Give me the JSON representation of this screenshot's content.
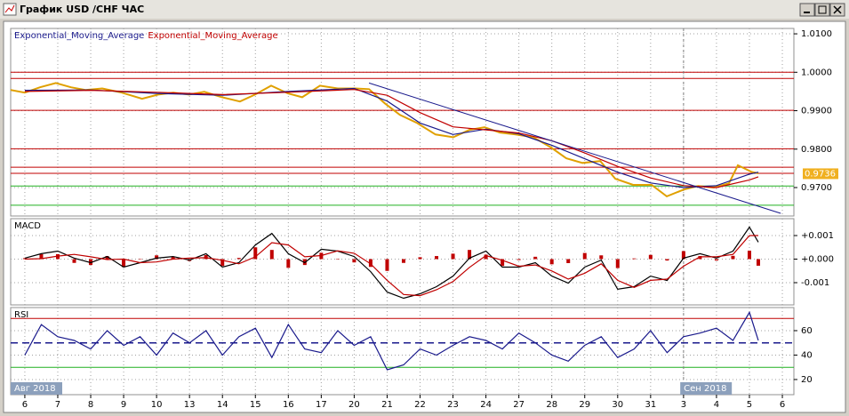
{
  "window_title": "График USD /CHF ЧАС",
  "chart_data": [
    {
      "type": "line",
      "series": [
        {
          "color": "#e0a000",
          "x": [
            -0.43,
            0,
            0.46,
            0.94,
            1.4,
            1.84,
            2.35,
            2.94,
            3.56,
            4.05,
            4.51,
            4.99,
            5.45,
            5.99,
            6.53,
            6.99,
            7.48,
            7.99,
            8.42,
            8.96,
            9.5,
            10.04,
            10.45,
            10.93,
            11.39,
            11.91,
            12.47,
            13.01,
            13.5,
            13.96,
            14.42,
            14.9,
            15.44,
            15.98,
            16.44,
            16.93,
            17.47,
            17.93,
            18.47,
            19.03,
            19.49,
            20.01,
            20.44,
            20.92,
            21.38,
            21.65,
            22.06,
            22.27
          ],
          "values": [
            0.9954,
            0.9947,
            0.9961,
            0.9972,
            0.9961,
            0.9954,
            0.9958,
            0.9947,
            0.9931,
            0.9942,
            0.9947,
            0.9942,
            0.9949,
            0.9935,
            0.9924,
            0.9942,
            0.9965,
            0.9945,
            0.9935,
            0.9965,
            0.9958,
            0.9958,
            0.9956,
            0.9919,
            0.9889,
            0.9868,
            0.9838,
            0.9831,
            0.985,
            0.9857,
            0.9843,
            0.9838,
            0.9831,
            0.9804,
            0.9776,
            0.9764,
            0.9769,
            0.9723,
            0.9707,
            0.9707,
            0.9677,
            0.9695,
            0.9704,
            0.97,
            0.9711,
            0.9758,
            0.9741,
            0.9737
          ]
        },
        {
          "name": "Exponential_Moving_Average",
          "color": "#1a1a8c",
          "x": [
            0,
            2,
            4,
            6,
            8,
            10,
            11,
            12,
            13,
            14,
            15,
            16,
            17,
            18,
            19,
            20,
            21,
            22,
            22.27
          ],
          "values": [
            0.9953,
            0.9954,
            0.9945,
            0.994,
            0.995,
            0.9958,
            0.9925,
            0.9868,
            0.9838,
            0.9852,
            0.984,
            0.981,
            0.9775,
            0.974,
            0.9712,
            0.97,
            0.9705,
            0.9735,
            0.974
          ]
        },
        {
          "name": "Exponential_Moving_Average",
          "color": "#c00000",
          "x": [
            0,
            2,
            4,
            6,
            8,
            10,
            11,
            12,
            13,
            14,
            15,
            16,
            17,
            18,
            19,
            20,
            21,
            22,
            22.27
          ],
          "values": [
            0.995,
            0.9953,
            0.9948,
            0.9942,
            0.9948,
            0.9955,
            0.994,
            0.9895,
            0.9858,
            0.985,
            0.9842,
            0.9822,
            0.979,
            0.9755,
            0.9725,
            0.9705,
            0.97,
            0.972,
            0.9728
          ]
        }
      ],
      "hlines": [
        {
          "value": 1.0,
          "color": "#c00000"
        },
        {
          "value": 0.9984,
          "color": "#c00000"
        },
        {
          "value": 0.9901,
          "color": "#c00000"
        },
        {
          "value": 0.9801,
          "color": "#c00000"
        },
        {
          "value": 0.9753,
          "color": "#c00000"
        },
        {
          "value": 0.9737,
          "color": "#c00000"
        },
        {
          "value": 0.9704,
          "color": "#20b020"
        },
        {
          "value": 0.9654,
          "color": "#20b020"
        }
      ],
      "trendline": {
        "x": [
          10.45,
          22.95
        ],
        "values": [
          0.9972,
          0.9633
        ],
        "color": "#1a1a8c"
      },
      "last_price": {
        "value": 0.9736,
        "label": "0.9736",
        "color": "#f0b020"
      },
      "xlim": [
        -0.43,
        23.35
      ],
      "ylim": [
        0.9626,
        1.0114
      ],
      "yticks": [
        {
          "value": 1.01,
          "label": "1.0100"
        },
        {
          "value": 1.0,
          "label": "1.0000"
        },
        {
          "value": 0.99,
          "label": "0.9900"
        },
        {
          "value": 0.98,
          "label": "0.9800"
        },
        {
          "value": 0.97,
          "label": "0.9700"
        }
      ],
      "grid": true
    },
    {
      "type": "line",
      "title": "MACD",
      "x": [
        0,
        0.5,
        1,
        1.5,
        2,
        2.5,
        3,
        3.5,
        4,
        4.5,
        5,
        5.5,
        6,
        6.5,
        7,
        7.5,
        8,
        8.5,
        9,
        9.5,
        10,
        10.5,
        11,
        11.5,
        12,
        12.5,
        13,
        13.5,
        14,
        14.5,
        15,
        15.5,
        16,
        16.5,
        17,
        17.5,
        18,
        18.5,
        19,
        19.5,
        20,
        20.5,
        21,
        21.5,
        22,
        22.27
      ],
      "series": [
        {
          "type": "bar",
          "color": "#c00000",
          "values": [
            4e-05,
            0.00021,
            0.00021,
            -0.00016,
            -0.00025,
            0.00013,
            -0.00034,
            0,
            0.00016,
            0.00011,
            -8e-05,
            0.00017,
            -0.00029,
            5e-05,
            0.0005,
            0.00039,
            -0.00037,
            -0.00025,
            0.00027,
            -1e-05,
            -0.00014,
            -0.00033,
            -0.0005,
            -0.00016,
            8e-05,
            0.00013,
            0.00023,
            0.00039,
            0.00019,
            -0.00029,
            -4e-05,
            0.0001,
            -0.00022,
            -0.00017,
            0.00026,
            0.00016,
            -0.00038,
            3e-05,
            0.00018,
            -6e-05,
            0.00034,
            0.00013,
            -6e-05,
            0.00014,
            0.00036,
            -0.00028
          ]
        },
        {
          "color": "#000000",
          "values": [
            4e-05,
            0.00023,
            0.00034,
            4e-05,
            -0.00015,
            0.00011,
            -0.00034,
            -0.00015,
            4e-05,
            0.00011,
            -4e-05,
            0.00023,
            -0.00034,
            -0.00015,
            0.0006,
            0.00109,
            0.00023,
            -0.00015,
            0.00042,
            0.00034,
            0.00011,
            -0.00053,
            -0.0014,
            -0.00166,
            -0.00147,
            -0.00117,
            -0.00072,
            4e-05,
            0.00034,
            -0.00034,
            -0.00034,
            -0.00015,
            -0.00072,
            -0.00102,
            -0.00034,
            -4e-05,
            -0.00128,
            -0.00117,
            -0.00072,
            -0.00091,
            4e-05,
            0.00023,
            4e-05,
            0.00034,
            0.00136,
            0.00072
          ]
        },
        {
          "color": "#c00000",
          "values": [
            0,
            2e-05,
            0.00013,
            0.0002,
            0.0001,
            -2e-05,
            0,
            -0.00015,
            -0.00012,
            0,
            4e-05,
            6e-05,
            -5e-05,
            -0.0002,
            0.0001,
            0.0007,
            0.0006,
            0.0001,
            0.00015,
            0.00035,
            0.00025,
            -0.0002,
            -0.0009,
            -0.0015,
            -0.00155,
            -0.0013,
            -0.00095,
            -0.00035,
            0.00015,
            -5e-05,
            -0.0003,
            -0.00025,
            -0.0005,
            -0.00085,
            -0.0006,
            -0.0002,
            -0.0009,
            -0.0012,
            -0.0009,
            -0.00085,
            -0.0003,
            0.0001,
            0.0001,
            0.0002,
            0.001,
            0.001
          ]
        }
      ],
      "xlim": [
        -0.43,
        23.35
      ],
      "ylim": [
        -0.001943,
        0.001717
      ],
      "yticks": [
        {
          "value": 0.001,
          "label": "+0.001"
        },
        {
          "value": 0,
          "label": "+0.000"
        },
        {
          "value": -0.001,
          "label": "-0.001"
        }
      ],
      "grid": true
    },
    {
      "type": "line",
      "title": "RSI",
      "x": [
        0,
        0.5,
        1,
        1.5,
        2,
        2.5,
        3,
        3.5,
        4,
        4.5,
        5,
        5.5,
        6,
        6.5,
        7,
        7.5,
        8,
        8.5,
        9,
        9.5,
        10,
        10.5,
        11,
        11.5,
        12,
        12.5,
        13,
        13.5,
        14,
        14.5,
        15,
        15.5,
        16,
        16.5,
        17,
        17.5,
        18,
        18.5,
        19,
        19.5,
        20,
        20.5,
        21,
        21.5,
        22,
        22.27
      ],
      "series": [
        {
          "color": "#1a1a8c",
          "values": [
            40,
            65,
            55,
            52,
            45,
            60,
            48,
            55,
            40,
            58,
            50,
            60,
            40,
            55,
            62,
            38,
            65,
            45,
            42,
            60,
            48,
            55,
            28,
            32,
            45,
            40,
            48,
            55,
            52,
            45,
            58,
            50,
            40,
            35,
            48,
            55,
            38,
            45,
            60,
            42,
            55,
            58,
            62,
            52,
            75,
            52
          ]
        }
      ],
      "hlines": [
        {
          "value": 70,
          "color": "#c00000"
        },
        {
          "value": 50,
          "color": "#1a1a8c",
          "dashed": true
        },
        {
          "value": 30,
          "color": "#20b020"
        }
      ],
      "xlim": [
        -0.43,
        23.35
      ],
      "ylim": [
        7.6,
        78.9
      ],
      "yticks": [
        60,
        40,
        20
      ],
      "xticks": [
        {
          "value": 0,
          "label": "6"
        },
        {
          "value": 1,
          "label": "7"
        },
        {
          "value": 2,
          "label": "8"
        },
        {
          "value": 3,
          "label": "9"
        },
        {
          "value": 4,
          "label": "10"
        },
        {
          "value": 5,
          "label": "13"
        },
        {
          "value": 6,
          "label": "14"
        },
        {
          "value": 7,
          "label": "15"
        },
        {
          "value": 8,
          "label": "16"
        },
        {
          "value": 9,
          "label": "17"
        },
        {
          "value": 10,
          "label": "20"
        },
        {
          "value": 11,
          "label": "21"
        },
        {
          "value": 12,
          "label": "22"
        },
        {
          "value": 13,
          "label": "23"
        },
        {
          "value": 14,
          "label": "24"
        },
        {
          "value": 15,
          "label": "27"
        },
        {
          "value": 16,
          "label": "28"
        },
        {
          "value": 17,
          "label": "29"
        },
        {
          "value": 18,
          "label": "30"
        },
        {
          "value": 19,
          "label": "31"
        },
        {
          "value": 20,
          "label": "3"
        },
        {
          "value": 21,
          "label": "4"
        },
        {
          "value": 22,
          "label": "5"
        },
        {
          "value": 23,
          "label": "6"
        }
      ],
      "separator": 20,
      "month_labels": [
        {
          "value": -0.43,
          "label": "Авг 2018"
        },
        {
          "value": 19.9,
          "label": "Сен 2018"
        }
      ],
      "grid": true
    }
  ]
}
